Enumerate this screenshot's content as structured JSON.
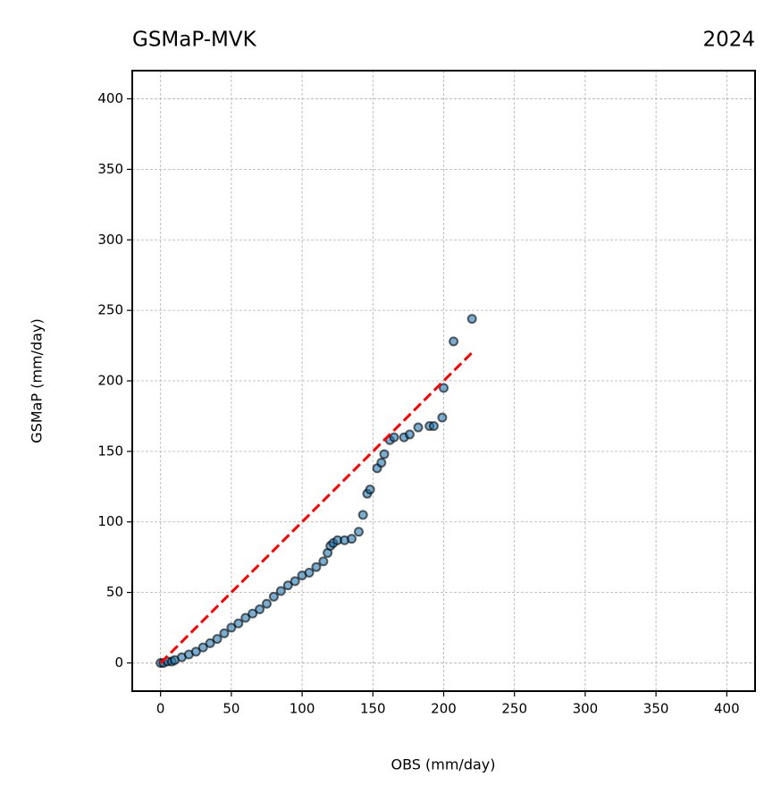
{
  "chart_data": {
    "type": "scatter",
    "title": "GSMaP-MVK",
    "title_right": "2024",
    "x_label": "OBS (mm/day)",
    "y_label": "GSMaP (mm/day)",
    "xlim": [
      -20,
      420
    ],
    "ylim": [
      -20,
      420
    ],
    "xticks": [
      0,
      50,
      100,
      150,
      200,
      250,
      300,
      350,
      400
    ],
    "yticks": [
      0,
      50,
      100,
      150,
      200,
      250,
      300,
      350,
      400
    ],
    "grid": true,
    "point_color": "#1f77b4",
    "edge_color": "#000000",
    "x": [
      0,
      2,
      5,
      8,
      10,
      15,
      20,
      25,
      30,
      35,
      40,
      45,
      50,
      55,
      60,
      65,
      70,
      75,
      80,
      85,
      90,
      95,
      100,
      105,
      110,
      115,
      118,
      120,
      122,
      125,
      130,
      135,
      140,
      143,
      146,
      148,
      153,
      156,
      158,
      162,
      165,
      172,
      176,
      182,
      190,
      193,
      199,
      200,
      207,
      220
    ],
    "y": [
      0,
      0,
      1,
      1,
      2,
      4,
      6,
      8,
      11,
      14,
      17,
      21,
      25,
      28,
      32,
      35,
      38,
      42,
      47,
      51,
      55,
      58,
      62,
      64,
      68,
      72,
      78,
      83,
      85,
      87,
      87,
      88,
      93,
      105,
      120,
      123,
      138,
      142,
      148,
      158,
      160,
      160,
      162,
      167,
      168,
      168,
      174,
      195,
      228,
      244
    ],
    "reference_line": {
      "x": [
        0,
        220
      ],
      "y": [
        0,
        220
      ],
      "color": "#ff0000"
    }
  }
}
